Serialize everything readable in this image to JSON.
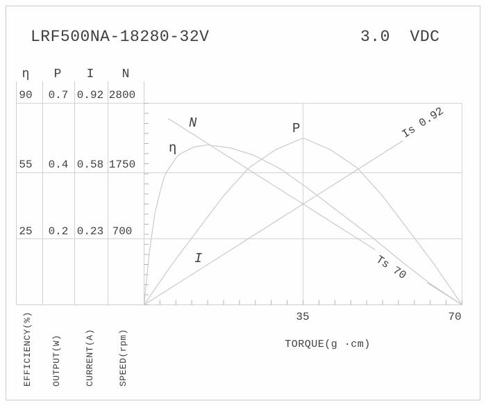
{
  "header": {
    "model": "LRF500NA-18280-32V",
    "voltage": "3.0  VDC"
  },
  "axis_table": {
    "headers": [
      "η",
      "P",
      "I",
      "N"
    ],
    "rows": [
      {
        "values": [
          "90",
          "0.7",
          "0.92",
          "2800"
        ]
      },
      {
        "values": [
          "55",
          "0.4",
          "0.58",
          "1750"
        ]
      },
      {
        "values": [
          "25",
          "0.2",
          "0.23",
          "700"
        ]
      }
    ],
    "axis_titles": [
      "EFFICIENCY(%)",
      "OUTPUT(W)",
      "CURRENT(A)",
      "SPEED(rpm)"
    ]
  },
  "x_axis": {
    "tick_labels": [
      "35",
      "70"
    ],
    "title": "TORQUE(g ·cm)"
  },
  "curve_labels": {
    "n": "N",
    "eta": "η",
    "p": "P",
    "i": "I",
    "is": "Is 0.92",
    "ts": "Ts 70"
  },
  "colors": {
    "text": "#3f3f3f",
    "grid": "#d4d4d4",
    "table_line": "#cfcfcf",
    "tick": "#b3b3b3",
    "curve": "#c6c6c6",
    "border": "#cbcbcb",
    "background": "#fefefe"
  },
  "chart_data": {
    "type": "line",
    "title": "LRF500NA-18280-32V",
    "subtitle": "3.0 VDC",
    "xlabel": "TORQUE(g ·cm)",
    "x_range": [
      0,
      70
    ],
    "x_ticks": [
      35,
      70
    ],
    "grid": true,
    "axes": {
      "efficiency": {
        "label": "EFFICIENCY(%)",
        "ticks": [
          25,
          55,
          90
        ]
      },
      "output": {
        "label": "OUTPUT(W)",
        "ticks": [
          0.2,
          0.4,
          0.7
        ]
      },
      "current": {
        "label": "CURRENT(A)",
        "ticks": [
          0.23,
          0.58,
          0.92
        ]
      },
      "speed": {
        "label": "SPEED(rpm)",
        "ticks": [
          700,
          1750,
          2800
        ]
      }
    },
    "annotations": {
      "stall_current_label": "Is 0.92",
      "stall_current_A": 0.92,
      "stall_torque_label": "Ts 70",
      "stall_torque_gcm": 70,
      "no_load_speed_rpm": 2800,
      "max_output_W": 0.55,
      "max_output_at_torque": 35,
      "max_efficiency_pct": 69,
      "max_efficiency_at_torque": 14
    },
    "series": [
      {
        "name": "N",
        "axis": "speed",
        "points": [
          [
            0,
            2800
          ],
          [
            70,
            0
          ]
        ],
        "draw_ranges": [
          [
            5.3,
            50.9
          ],
          [
            62.3,
            70
          ]
        ]
      },
      {
        "name": "P",
        "axis": "output",
        "points": [
          [
            0,
            0
          ],
          [
            6,
            0.12
          ],
          [
            12,
            0.23
          ],
          [
            17.5,
            0.33
          ],
          [
            23,
            0.42
          ],
          [
            29,
            0.5
          ],
          [
            35,
            0.55
          ],
          [
            41,
            0.5
          ],
          [
            47,
            0.42
          ],
          [
            52.5,
            0.33
          ],
          [
            58,
            0.23
          ],
          [
            64,
            0.12
          ],
          [
            70,
            0
          ]
        ]
      },
      {
        "name": "η",
        "axis": "efficiency",
        "points": [
          [
            0,
            0
          ],
          [
            1,
            18
          ],
          [
            2.5,
            38
          ],
          [
            4.5,
            54
          ],
          [
            7.5,
            64
          ],
          [
            11,
            68
          ],
          [
            14,
            69
          ],
          [
            19,
            67.5
          ],
          [
            24,
            64
          ],
          [
            30,
            57
          ],
          [
            36,
            48
          ],
          [
            43,
            37
          ],
          [
            50,
            26
          ],
          [
            57,
            16
          ],
          [
            63,
            8
          ],
          [
            70,
            0
          ]
        ]
      },
      {
        "name": "I",
        "axis": "current",
        "points": [
          [
            0,
            0
          ],
          [
            70,
            0.92
          ]
        ],
        "draw_ranges": [
          [
            0,
            57
          ]
        ]
      }
    ]
  }
}
